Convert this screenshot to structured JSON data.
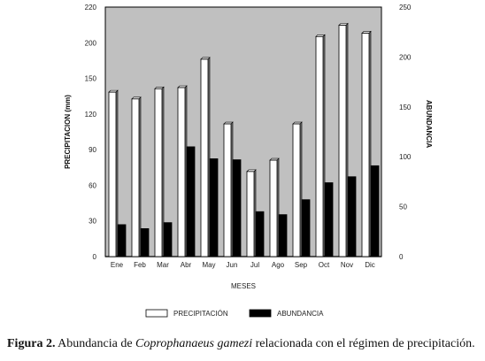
{
  "chart_data": {
    "type": "bar",
    "categories": [
      "Ene",
      "Feb",
      "Mar",
      "Abr",
      "May",
      "Jun",
      "Jul",
      "Ago",
      "Sep",
      "Oct",
      "Nov",
      "Dic"
    ],
    "series": [
      {
        "name": "PRECIPITACIÓN",
        "axis": "left",
        "color": "#ffffff",
        "values": [
          145,
          139,
          148,
          149,
          174,
          117,
          75,
          85,
          117,
          194,
          204,
          197
        ]
      },
      {
        "name": "ABUNDANCIA",
        "axis": "right",
        "color": "#000000",
        "values": [
          32,
          28,
          34,
          110,
          98,
          97,
          45,
          42,
          57,
          74,
          80,
          91
        ]
      }
    ],
    "xlabel": "MESES",
    "ylabel_left": "PRECIPITACION (mm)",
    "ylabel_right": "ABUNDANCIA",
    "ylim_left": [
      0,
      220
    ],
    "ylim_right": [
      0,
      250
    ],
    "yticks_left": [
      "0",
      "30",
      "60",
      "90",
      "120",
      "150",
      "200",
      "220"
    ],
    "yticks_right": [
      "0",
      "50",
      "100",
      "150",
      "200",
      "250"
    ],
    "plot_background": "#c0c0c0",
    "legend_position": "bottom"
  },
  "caption": {
    "label": "Figura 2.",
    "text_before": " Abundancia de ",
    "species": "Coprophanaeus gamezi",
    "text_after": " relacionada con el régimen de precipitación."
  }
}
